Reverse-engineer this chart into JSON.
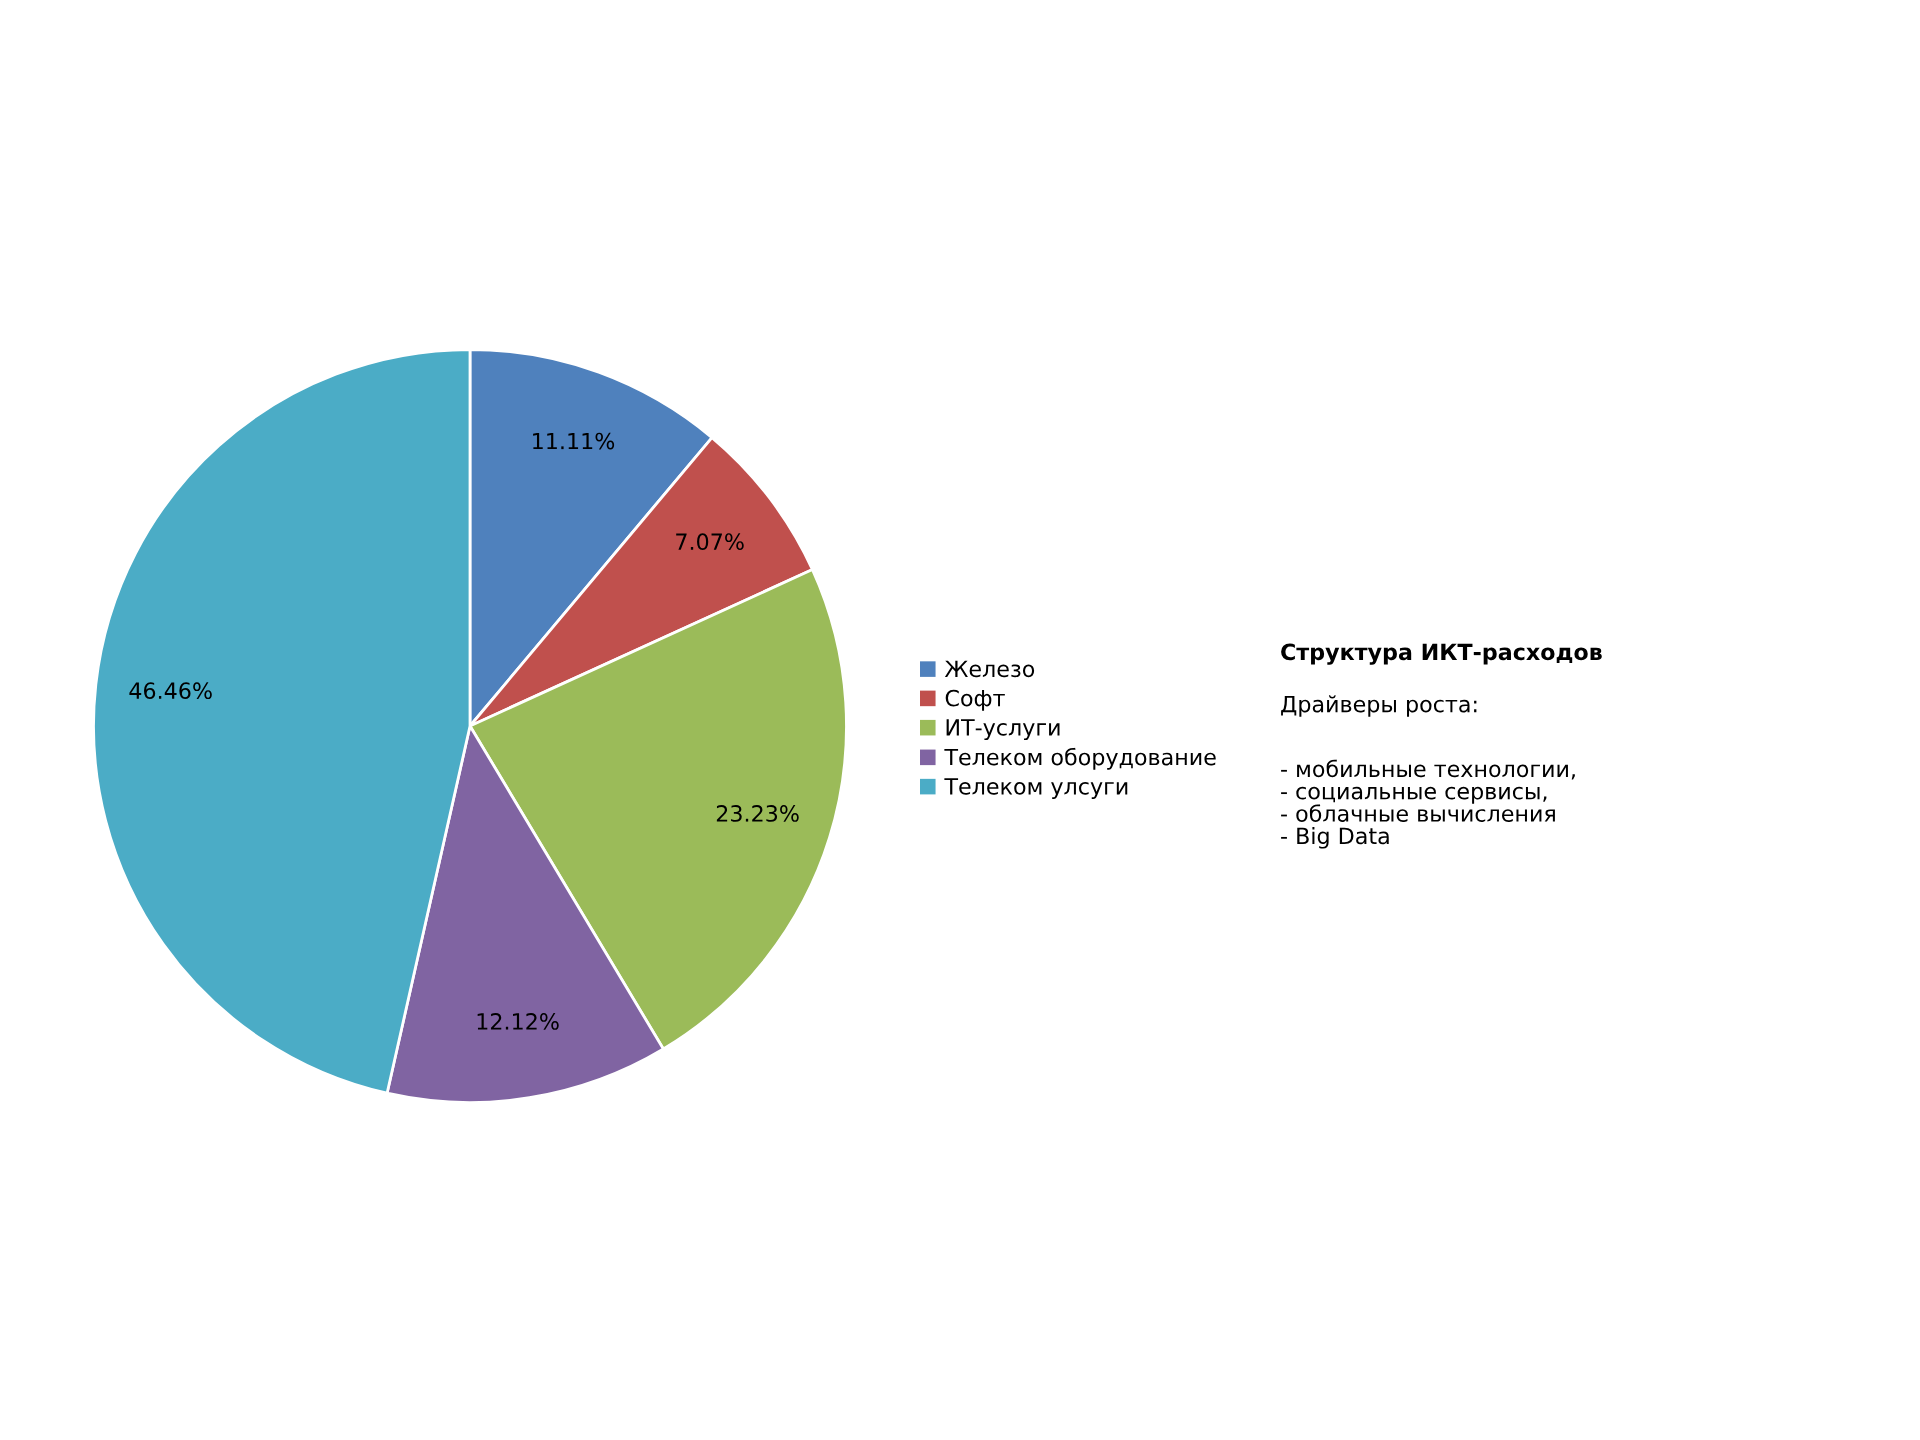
{
  "chart_data": {
    "type": "pie",
    "title": "Структура ИКТ-расходов",
    "categories": [
      "Железо",
      "Софт",
      "ИТ-услуги",
      "Телеком оборудование",
      "Телеком улсуги"
    ],
    "values": [
      11.11,
      7.07,
      23.23,
      12.12,
      46.46
    ],
    "colors": [
      "#4f81bd",
      "#c0504d",
      "#9bbb59",
      "#8064a2",
      "#4bacc6"
    ],
    "value_labels": [
      "11.11%",
      "7.07%",
      "23.23%",
      "12.12%",
      "46.46%"
    ],
    "legend": "right",
    "annotations": [
      "Драйверы роста:",
      "- мобильные технологии,\n- социальные сервисы,\n- облачные вычисления\n- Big Data"
    ]
  }
}
